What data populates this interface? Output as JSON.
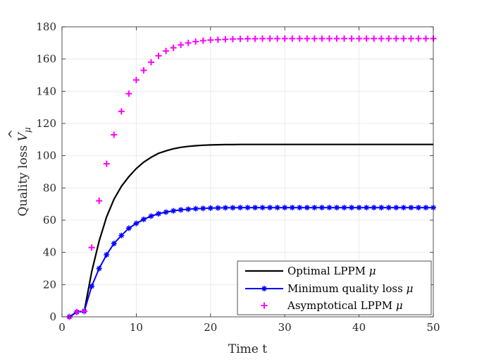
{
  "chart_data": {
    "type": "line",
    "xlabel": "Time t",
    "ylabel": "Quality loss V̂_μ",
    "ylabel_main": "Quality loss ",
    "ylabel_symbol": "V",
    "ylabel_hat": "^",
    "ylabel_subscript": "μ",
    "xlim": [
      0,
      50
    ],
    "ylim": [
      0,
      180
    ],
    "xticks": [
      0,
      10,
      20,
      30,
      40,
      50
    ],
    "yticks": [
      0,
      20,
      40,
      60,
      80,
      100,
      120,
      140,
      160,
      180
    ],
    "grid": true,
    "legend_position": "bottom-right",
    "series": [
      {
        "name": "Optimal LPPM μ",
        "name_text": "Optimal LPPM ",
        "name_symbol": "μ",
        "color": "#000000",
        "style": "line",
        "x": [
          1,
          2,
          3,
          4,
          5,
          6,
          7,
          8,
          9,
          10,
          11,
          12,
          13,
          14,
          15,
          16,
          17,
          18,
          19,
          20,
          21,
          22,
          23,
          24,
          25,
          26,
          27,
          28,
          29,
          30,
          31,
          32,
          33,
          34,
          35,
          36,
          37,
          38,
          39,
          40,
          41,
          42,
          43,
          44,
          45,
          46,
          47,
          48,
          49,
          50
        ],
        "y": [
          0,
          3,
          3.5,
          28,
          47,
          62,
          73,
          81,
          87,
          92,
          96,
          99,
          101.5,
          103,
          104.3,
          105.2,
          105.8,
          106.2,
          106.5,
          106.7,
          106.8,
          106.9,
          106.9,
          107,
          107,
          107,
          107,
          107,
          107,
          107,
          107,
          107,
          107,
          107,
          107,
          107,
          107,
          107,
          107,
          107,
          107,
          107,
          107,
          107,
          107,
          107,
          107,
          107,
          107,
          107
        ]
      },
      {
        "name": "Minimum quality loss μ",
        "name_text": "Minimum quality loss ",
        "name_symbol": "μ",
        "color": "#0000ff",
        "style": "line-asterisk",
        "x": [
          1,
          2,
          3,
          4,
          5,
          6,
          7,
          8,
          9,
          10,
          11,
          12,
          13,
          14,
          15,
          16,
          17,
          18,
          19,
          20,
          21,
          22,
          23,
          24,
          25,
          26,
          27,
          28,
          29,
          30,
          31,
          32,
          33,
          34,
          35,
          36,
          37,
          38,
          39,
          40,
          41,
          42,
          43,
          44,
          45,
          46,
          47,
          48,
          49,
          50
        ],
        "y": [
          0,
          3,
          3.5,
          19,
          30,
          38.5,
          45.5,
          50.5,
          55,
          58,
          60.5,
          62.5,
          64,
          65,
          65.8,
          66.4,
          66.8,
          67.1,
          67.3,
          67.5,
          67.6,
          67.7,
          67.7,
          67.8,
          67.8,
          67.8,
          67.8,
          67.8,
          67.8,
          67.8,
          67.8,
          67.8,
          67.8,
          67.8,
          67.8,
          67.8,
          67.8,
          67.8,
          67.8,
          67.8,
          67.8,
          67.8,
          67.8,
          67.8,
          67.8,
          67.8,
          67.8,
          67.8,
          67.8,
          67.8
        ]
      },
      {
        "name": "Asymptotical LPPM μ",
        "name_text": "Asymptotical LPPM ",
        "name_symbol": "μ",
        "color": "#ff00ff",
        "style": "plus",
        "x": [
          1,
          2,
          3,
          4,
          5,
          6,
          7,
          8,
          9,
          10,
          11,
          12,
          13,
          14,
          15,
          16,
          17,
          18,
          19,
          20,
          21,
          22,
          23,
          24,
          25,
          26,
          27,
          28,
          29,
          30,
          31,
          32,
          33,
          34,
          35,
          36,
          37,
          38,
          39,
          40,
          41,
          42,
          43,
          44,
          45,
          46,
          47,
          48,
          49,
          50
        ],
        "y": [
          0,
          3,
          3.5,
          43,
          72,
          95,
          113,
          127.5,
          138.5,
          147,
          153,
          158,
          162,
          165,
          167,
          168.8,
          170,
          170.8,
          171.4,
          171.8,
          172,
          172.2,
          172.4,
          172.5,
          172.6,
          172.6,
          172.7,
          172.7,
          172.7,
          172.7,
          172.7,
          172.7,
          172.7,
          172.7,
          172.7,
          172.7,
          172.7,
          172.7,
          172.7,
          172.7,
          172.7,
          172.7,
          172.7,
          172.7,
          172.7,
          172.7,
          172.7,
          172.7,
          172.7,
          172.7
        ]
      }
    ]
  }
}
